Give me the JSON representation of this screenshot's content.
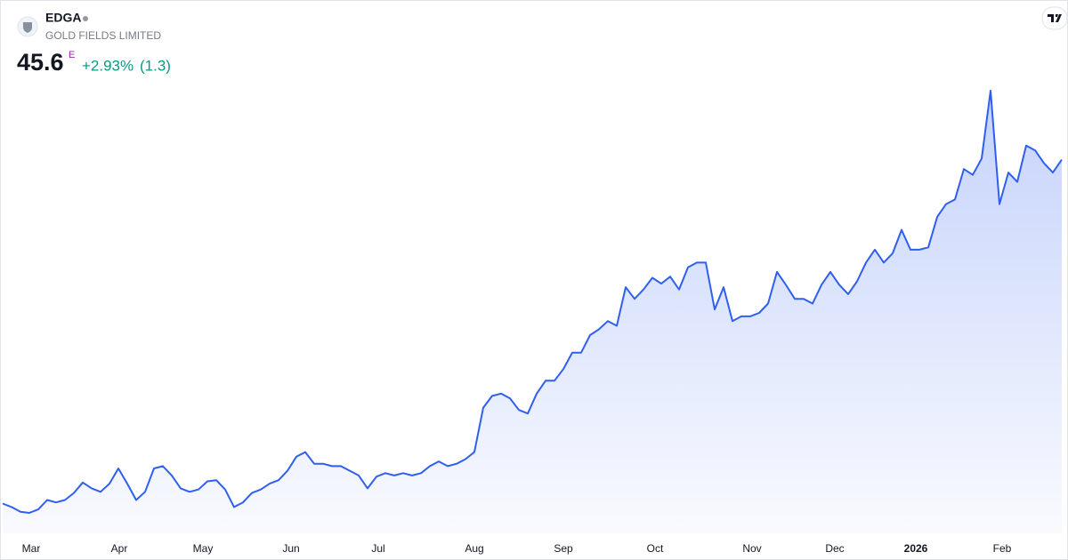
{
  "chart_data": {
    "type": "area",
    "symbol": "EDGA",
    "title": "GOLD FIELDS LIMITED",
    "last_price": 45.6,
    "price_marker": "E",
    "change_percent": {
      "value": 2.93,
      "label": "+2.93%"
    },
    "change": {
      "value": 1.3,
      "label": "(1.3)"
    },
    "color": "#2f5ff0",
    "values": [
      16.2,
      15.9,
      15.5,
      15.4,
      15.7,
      16.5,
      16.3,
      16.5,
      17.1,
      18.0,
      17.5,
      17.2,
      17.9,
      19.2,
      17.9,
      16.5,
      17.2,
      19.2,
      19.4,
      18.6,
      17.5,
      17.2,
      17.4,
      18.1,
      18.2,
      17.4,
      15.9,
      16.3,
      17.1,
      17.4,
      17.9,
      18.2,
      19.0,
      20.2,
      20.6,
      19.6,
      19.6,
      19.4,
      19.4,
      19.0,
      18.6,
      17.5,
      18.5,
      18.8,
      18.6,
      18.8,
      18.6,
      18.8,
      19.4,
      19.8,
      19.4,
      19.6,
      20.0,
      20.6,
      24.4,
      25.4,
      25.6,
      25.2,
      24.2,
      23.9,
      25.6,
      26.7,
      26.7,
      27.7,
      29.1,
      29.1,
      30.6,
      31.1,
      31.8,
      31.4,
      34.7,
      33.7,
      34.5,
      35.5,
      35.0,
      35.6,
      34.5,
      36.4,
      36.8,
      36.8,
      32.8,
      34.7,
      31.8,
      32.2,
      32.2,
      32.5,
      33.3,
      36.0,
      34.9,
      33.7,
      33.7,
      33.3,
      34.9,
      36.0,
      34.9,
      34.1,
      35.2,
      36.8,
      37.9,
      36.8,
      37.6,
      39.6,
      37.9,
      37.9,
      38.1,
      40.7,
      41.8,
      42.2,
      44.8,
      44.3,
      45.7,
      51.5,
      41.8,
      44.5,
      43.7,
      46.8,
      46.4,
      45.3,
      44.5,
      45.6
    ],
    "xticks": [
      {
        "value": 3.2,
        "label": "Mar"
      },
      {
        "value": 13.1,
        "label": "Apr"
      },
      {
        "value": 22.5,
        "label": "May"
      },
      {
        "value": 32.4,
        "label": "Jun"
      },
      {
        "value": 42.2,
        "label": "Jul"
      },
      {
        "value": 53,
        "label": "Aug"
      },
      {
        "value": 63,
        "label": "Sep"
      },
      {
        "value": 73.3,
        "label": "Oct"
      },
      {
        "value": 84.2,
        "label": "Nov"
      },
      {
        "value": 93.5,
        "label": "Dec"
      },
      {
        "value": 102.6,
        "label": "2026"
      },
      {
        "value": 112.3,
        "label": "Feb"
      }
    ]
  }
}
